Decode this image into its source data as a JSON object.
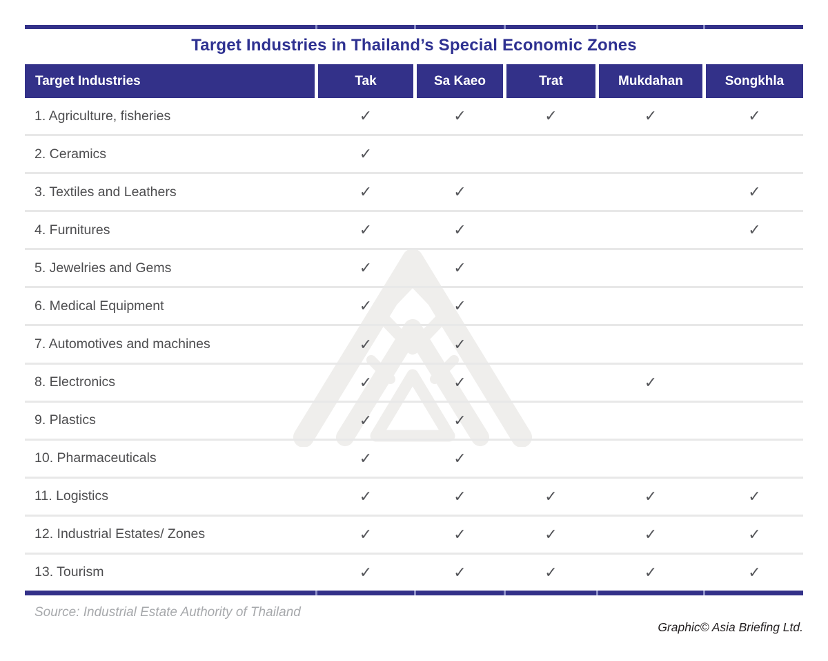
{
  "chart_data": {
    "type": "table",
    "title": "Target Industries in Thailand’s Special Economic Zones",
    "columns": [
      "Target Industries",
      "Tak",
      "Sa Kaeo",
      "Trat",
      "Mukdahan",
      "Songkhla"
    ],
    "rows": [
      {
        "label": "1. Agriculture, fisheries",
        "checks": [
          1,
          1,
          1,
          1,
          1
        ]
      },
      {
        "label": "2. Ceramics",
        "checks": [
          1,
          0,
          0,
          0,
          0
        ]
      },
      {
        "label": "3. Textiles and Leathers",
        "checks": [
          1,
          1,
          0,
          0,
          1
        ]
      },
      {
        "label": "4. Furnitures",
        "checks": [
          1,
          1,
          0,
          0,
          1
        ]
      },
      {
        "label": "5. Jewelries and Gems",
        "checks": [
          1,
          1,
          0,
          0,
          0
        ]
      },
      {
        "label": "6. Medical Equipment",
        "checks": [
          1,
          1,
          0,
          0,
          0
        ]
      },
      {
        "label": "7. Automotives and machines",
        "checks": [
          1,
          1,
          0,
          0,
          0
        ]
      },
      {
        "label": "8. Electronics",
        "checks": [
          1,
          1,
          0,
          1,
          0
        ]
      },
      {
        "label": "9. Plastics",
        "checks": [
          1,
          1,
          0,
          0,
          0
        ]
      },
      {
        "label": "10. Pharmaceuticals",
        "checks": [
          1,
          1,
          0,
          0,
          0
        ]
      },
      {
        "label": "11. Logistics",
        "checks": [
          1,
          1,
          1,
          1,
          1
        ]
      },
      {
        "label": "12. Industrial Estates/ Zones",
        "checks": [
          1,
          1,
          1,
          1,
          1
        ]
      },
      {
        "label": "13. Tourism",
        "checks": [
          1,
          1,
          1,
          1,
          1
        ]
      }
    ],
    "legend_note": "check mark = industry targeted in that zone",
    "layout": {
      "grid": "horizontal row separators only",
      "header_position": "top"
    }
  },
  "check_glyph": "✓",
  "footer": {
    "source": "Source: Industrial Estate Authority of Thailand",
    "credit": "Graphic© Asia Briefing Ltd."
  },
  "icons": {
    "watermark": "asia-briefing-logo"
  },
  "colors": {
    "navy": "#333189",
    "title_navy": "#2e3191",
    "header_text": "#ffffff",
    "row_text": "#4d4d4f",
    "check_gray": "#55565a",
    "separator_gray": "#e8e8e8",
    "bar_gap_blue": "#8a8dc7",
    "source_gray": "#a7a9ac",
    "credit_dark": "#231f20",
    "watermark_gray": "#efeeec"
  }
}
